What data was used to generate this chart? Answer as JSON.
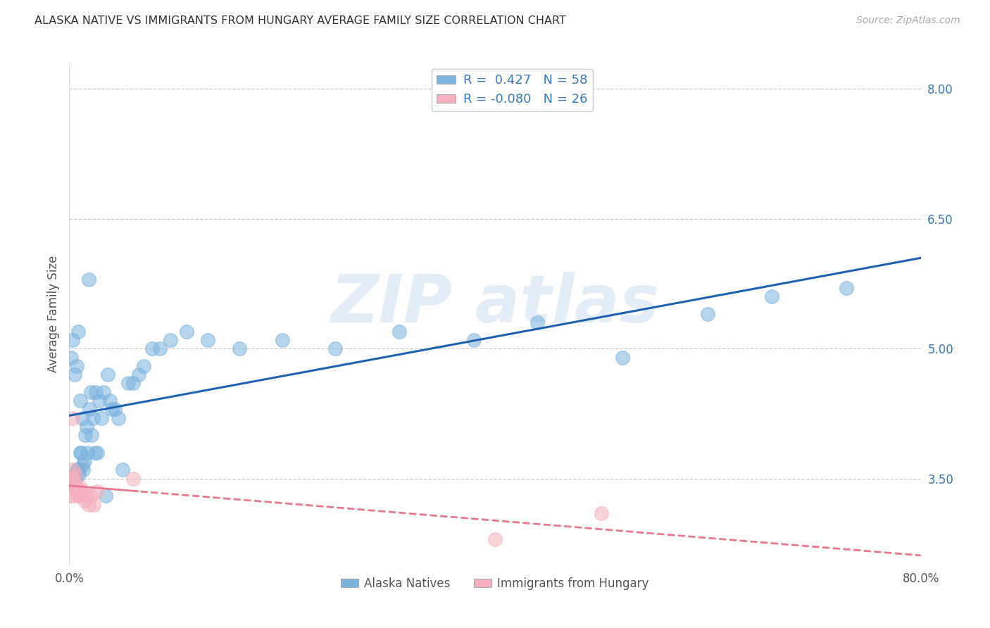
{
  "title": "ALASKA NATIVE VS IMMIGRANTS FROM HUNGARY AVERAGE FAMILY SIZE CORRELATION CHART",
  "source": "Source: ZipAtlas.com",
  "ylabel": "Average Family Size",
  "right_yticks": [
    3.5,
    5.0,
    6.5,
    8.0
  ],
  "background_color": "#ffffff",
  "legend_items": [
    {
      "label": "R =  0.427   N = 58",
      "color": "#aec6e8"
    },
    {
      "label": "R = -0.080   N = 26",
      "color": "#f4b8c0"
    }
  ],
  "legend_bottom": [
    "Alaska Natives",
    "Immigrants from Hungary"
  ],
  "blue_scatter_x": [
    0.002,
    0.003,
    0.004,
    0.005,
    0.005,
    0.006,
    0.007,
    0.007,
    0.008,
    0.008,
    0.009,
    0.01,
    0.01,
    0.011,
    0.012,
    0.012,
    0.013,
    0.014,
    0.015,
    0.016,
    0.017,
    0.018,
    0.019,
    0.02,
    0.021,
    0.022,
    0.024,
    0.025,
    0.026,
    0.028,
    0.03,
    0.032,
    0.034,
    0.036,
    0.038,
    0.04,
    0.043,
    0.046,
    0.05,
    0.055,
    0.06,
    0.065,
    0.07,
    0.078,
    0.085,
    0.095,
    0.11,
    0.13,
    0.16,
    0.2,
    0.25,
    0.31,
    0.38,
    0.44,
    0.52,
    0.6,
    0.66,
    0.73
  ],
  "blue_scatter_y": [
    4.9,
    5.1,
    3.55,
    3.5,
    4.7,
    3.5,
    3.6,
    4.8,
    3.6,
    5.2,
    3.55,
    3.8,
    4.4,
    3.8,
    3.65,
    4.2,
    3.6,
    3.7,
    4.0,
    4.1,
    3.8,
    5.8,
    4.3,
    4.5,
    4.0,
    4.2,
    3.8,
    4.5,
    3.8,
    4.4,
    4.2,
    4.5,
    3.3,
    4.7,
    4.4,
    4.3,
    4.3,
    4.2,
    3.6,
    4.6,
    4.6,
    4.7,
    4.8,
    5.0,
    5.0,
    5.1,
    5.2,
    5.1,
    5.0,
    5.1,
    5.0,
    5.2,
    5.1,
    5.3,
    4.9,
    5.4,
    5.6,
    5.7
  ],
  "pink_scatter_x": [
    0.001,
    0.001,
    0.002,
    0.002,
    0.003,
    0.003,
    0.004,
    0.004,
    0.005,
    0.006,
    0.006,
    0.007,
    0.008,
    0.009,
    0.01,
    0.011,
    0.012,
    0.014,
    0.016,
    0.018,
    0.02,
    0.023,
    0.026,
    0.06,
    0.4,
    0.5
  ],
  "pink_scatter_y": [
    3.4,
    3.3,
    3.5,
    3.4,
    4.2,
    3.6,
    3.5,
    3.3,
    3.45,
    3.55,
    3.4,
    3.4,
    3.35,
    3.3,
    3.4,
    3.3,
    3.35,
    3.25,
    3.3,
    3.2,
    3.3,
    3.2,
    3.35,
    3.5,
    2.8,
    3.1
  ],
  "blue_color": "#7ab3de",
  "pink_color": "#f4b0bc",
  "blue_line_color": "#2060b0",
  "pink_line_color": "#e87890",
  "grid_color": "#cccccc",
  "xlim": [
    0.0,
    0.8
  ],
  "ylim": [
    2.5,
    8.3
  ]
}
